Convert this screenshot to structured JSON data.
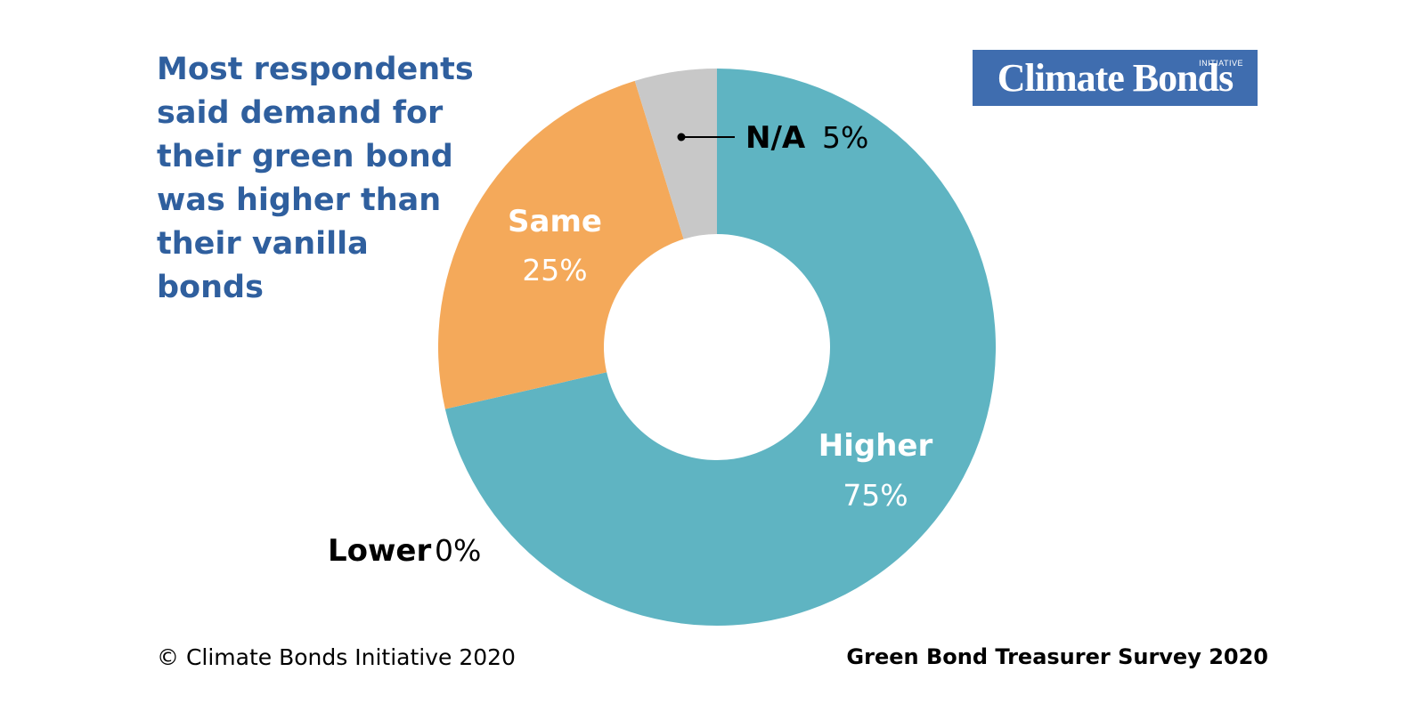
{
  "headline": "Most respondents said demand for their green bond was higher than their vanilla bonds",
  "logo": {
    "text": "Climate Bonds",
    "sub": "INITIATIVE"
  },
  "footer": {
    "copyright": "© Climate Bonds Initiative 2020",
    "survey": "Green Bond Treasurer Survey 2020"
  },
  "colors": {
    "headline": "#2f5f9e",
    "logo_bg": "#3f6daf"
  },
  "chart_data": {
    "type": "donut",
    "title": "",
    "unit": "%",
    "slices": [
      {
        "label": "Higher",
        "value": 75,
        "display": "75%",
        "color": "#5fb4c2"
      },
      {
        "label": "Lower",
        "value": 0,
        "display": "0%",
        "color": "#5fb4c2"
      },
      {
        "label": "Same",
        "value": 25,
        "display": "25%",
        "color": "#f4a95a"
      },
      {
        "label": "N/A",
        "value": 5,
        "display": "5%",
        "color": "#c8c8c8"
      }
    ]
  }
}
